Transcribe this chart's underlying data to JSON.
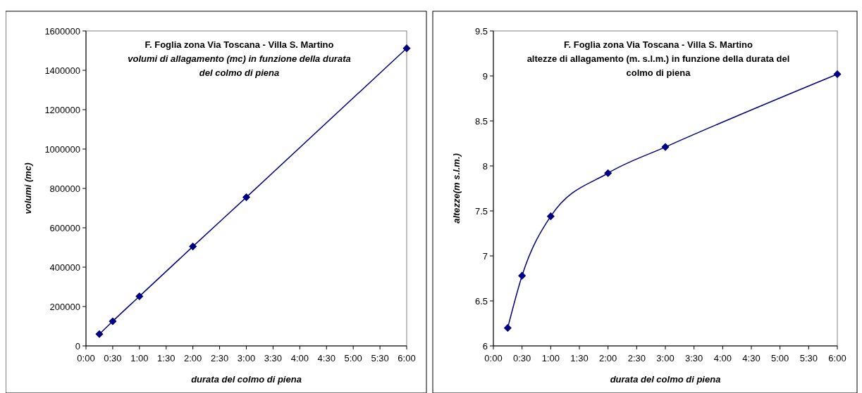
{
  "chart_data": [
    {
      "type": "line",
      "title": "F. Foglia zona Via Toscana - Villa S. Martino",
      "subtitle": "volumi di allagamento (mc) in funzione della durata del colmo di piena",
      "xlabel": "durata del colmo di piena",
      "ylabel": "volumi (mc)",
      "x": [
        0.25,
        0.5,
        1,
        2,
        3,
        6
      ],
      "series": [
        {
          "color": "#000080",
          "values": [
            60000,
            125000,
            252000,
            505000,
            755000,
            1512000
          ]
        }
      ],
      "xlim": [
        0,
        6
      ],
      "xticks": [
        {
          "value": 0,
          "label": "0:00"
        },
        {
          "value": 0.5,
          "label": "0:30"
        },
        {
          "value": 1,
          "label": "1:00"
        },
        {
          "value": 1.5,
          "label": "1:30"
        },
        {
          "value": 2,
          "label": "2:00"
        },
        {
          "value": 2.5,
          "label": "2:30"
        },
        {
          "value": 3,
          "label": "3:00"
        },
        {
          "value": 3.5,
          "label": "3:30"
        },
        {
          "value": 4,
          "label": "4:00"
        },
        {
          "value": 4.5,
          "label": "4:30"
        },
        {
          "value": 5,
          "label": "5:00"
        },
        {
          "value": 5.5,
          "label": "5:30"
        },
        {
          "value": 6,
          "label": "6:00"
        }
      ],
      "ylim": [
        0,
        1600000
      ],
      "yticks": [
        0,
        200000,
        400000,
        600000,
        800000,
        1000000,
        1200000,
        1400000,
        1600000
      ],
      "marker": "diamond"
    },
    {
      "type": "line",
      "title": "F. Foglia zona Via Toscana - Villa S. Martino",
      "subtitle": "altezze di allagamento (m. s.l.m.) in funzione della durata del colmo di piena",
      "xlabel": "durata del colmo di piena",
      "ylabel": "altezze(m s.l.m.)",
      "x": [
        0.25,
        0.5,
        1,
        2,
        3,
        6
      ],
      "series": [
        {
          "color": "#000080",
          "values": [
            6.2,
            6.78,
            7.44,
            7.92,
            8.21,
            9.02
          ]
        }
      ],
      "xlim": [
        0,
        6
      ],
      "xticks": [
        {
          "value": 0,
          "label": "0:00"
        },
        {
          "value": 0.5,
          "label": "0:30"
        },
        {
          "value": 1,
          "label": "1:00"
        },
        {
          "value": 1.5,
          "label": "1:30"
        },
        {
          "value": 2,
          "label": "2:00"
        },
        {
          "value": 2.5,
          "label": "2:30"
        },
        {
          "value": 3,
          "label": "3:00"
        },
        {
          "value": 3.5,
          "label": "3:30"
        },
        {
          "value": 4,
          "label": "4:00"
        },
        {
          "value": 4.5,
          "label": "4:30"
        },
        {
          "value": 5,
          "label": "5:00"
        },
        {
          "value": 5.5,
          "label": "5:30"
        },
        {
          "value": 6,
          "label": "6:00"
        }
      ],
      "ylim": [
        6,
        9.5
      ],
      "yticks": [
        6,
        6.5,
        7,
        7.5,
        8,
        8.5,
        9,
        9.5
      ],
      "marker": "diamond"
    }
  ]
}
